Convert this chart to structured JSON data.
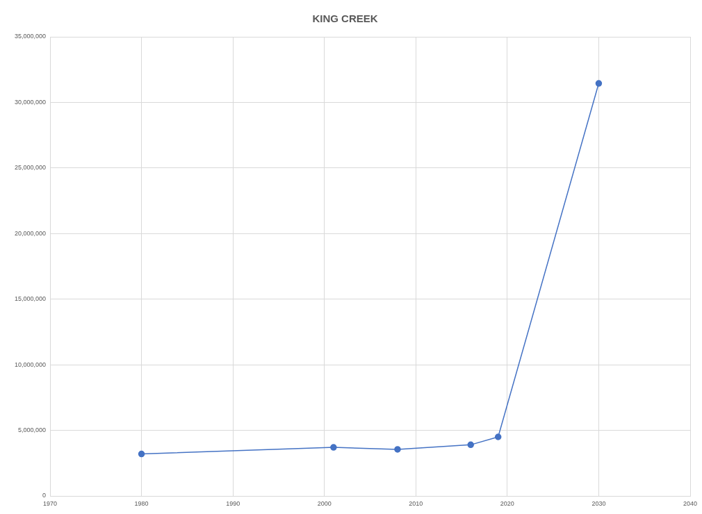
{
  "chart_data": {
    "type": "line",
    "title": "KING CREEK",
    "x": [
      1980,
      2001,
      2008,
      2016,
      2019,
      2030
    ],
    "values": [
      3200000,
      3700000,
      3550000,
      3900000,
      4500000,
      31450000
    ],
    "color": "#4472c4",
    "marker": "circle",
    "grid": true,
    "xlim": [
      1970,
      2040
    ],
    "xticks": [
      1970,
      1980,
      1990,
      2000,
      2010,
      2020,
      2030,
      2040
    ],
    "ylim": [
      0,
      35000000
    ],
    "yticks": [
      0,
      {
        "value": 5000000,
        "label": "5,000,000"
      },
      {
        "value": 10000000,
        "label": "10,000,000"
      },
      {
        "value": 15000000,
        "label": "15,000,000"
      },
      {
        "value": 20000000,
        "label": "20,000,000"
      },
      {
        "value": 25000000,
        "label": "25,000,000"
      },
      {
        "value": 30000000,
        "label": "30,000,000"
      },
      {
        "value": 35000000,
        "label": "35,000,000"
      }
    ]
  }
}
